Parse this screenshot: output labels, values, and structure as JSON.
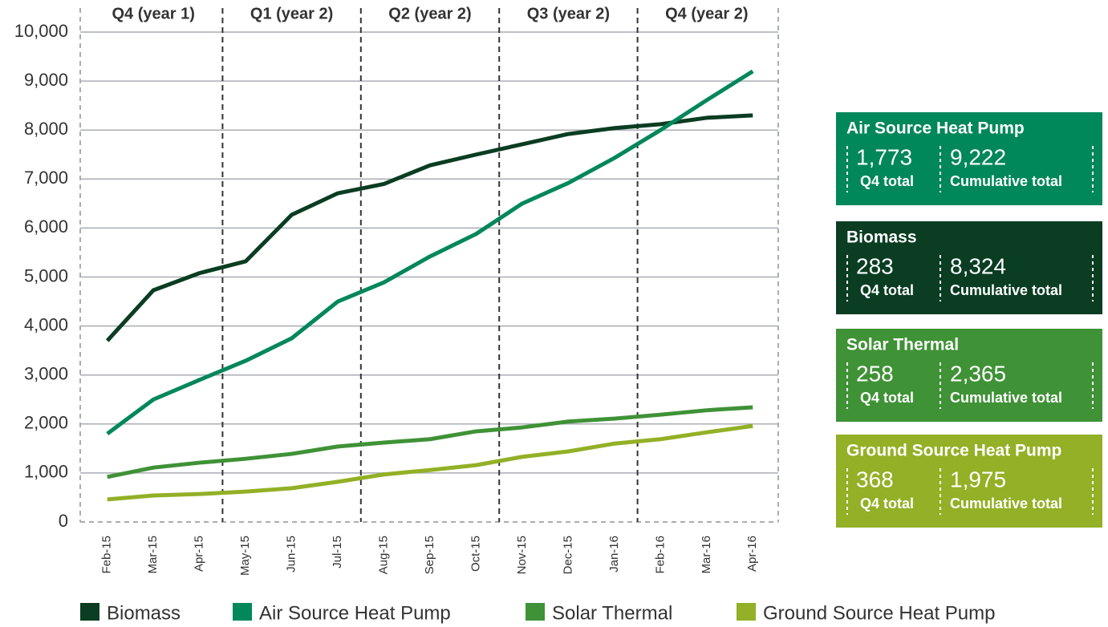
{
  "chart_data": {
    "type": "line",
    "categories": [
      "Feb-15",
      "Mar-15",
      "Apr-15",
      "May-15",
      "Jun-15",
      "Jul-15",
      "Aug-15",
      "Sep-15",
      "Oct-15",
      "Nov-15",
      "Dec-15",
      "Jan-16",
      "Feb-16",
      "Mar-16",
      "Apr-16"
    ],
    "quarters": [
      "Q4 (year 1)",
      "Q1 (year 2)",
      "Q2 (year 2)",
      "Q3 (year 2)",
      "Q4 (year 2)"
    ],
    "series": [
      {
        "name": "Biomass",
        "color": "#0a3d22",
        "values": [
          3700,
          4730,
          5080,
          5320,
          6270,
          6710,
          6900,
          7280,
          7500,
          7710,
          7920,
          8040,
          8120,
          8250,
          8300
        ]
      },
      {
        "name": "Air Source Heat Pump",
        "color": "#00875a",
        "values": [
          1800,
          2500,
          2900,
          3290,
          3750,
          4500,
          4890,
          5420,
          5880,
          6500,
          6920,
          7430,
          8000,
          8610,
          9200
        ]
      },
      {
        "name": "Solar Thermal",
        "color": "#3f9236",
        "values": [
          920,
          1110,
          1210,
          1290,
          1390,
          1540,
          1620,
          1690,
          1850,
          1930,
          2050,
          2110,
          2190,
          2280,
          2340
        ]
      },
      {
        "name": "Ground Source Heat Pump",
        "color": "#93b026",
        "values": [
          460,
          540,
          570,
          620,
          690,
          820,
          970,
          1060,
          1160,
          1330,
          1440,
          1600,
          1690,
          1830,
          1960
        ]
      }
    ],
    "ylim": [
      0,
      10000
    ],
    "yticks": [
      0,
      {
        "value": 1000,
        "label": "1,000"
      },
      {
        "value": 2000,
        "label": "2,000"
      },
      {
        "value": 3000,
        "label": "3,000"
      },
      {
        "value": 4000,
        "label": "4,000"
      },
      {
        "value": 5000,
        "label": "5,000"
      },
      {
        "value": 6000,
        "label": "6,000"
      },
      {
        "value": 7000,
        "label": "7,000"
      },
      {
        "value": 8000,
        "label": "8,000"
      },
      {
        "value": 9000,
        "label": "9,000"
      },
      {
        "value": 10000,
        "label": "10,000"
      }
    ],
    "grid": true
  },
  "panels": [
    {
      "title": "Air Source Heat Pump",
      "color": "#00875a",
      "quarter": "1,773",
      "quarter_label": "Q4 total",
      "cumulative": "9,222",
      "cumulative_label": "Cumulative total"
    },
    {
      "title": "Biomass",
      "color": "#0a3d22",
      "quarter": "283",
      "quarter_label": "Q4 total",
      "cumulative": "8,324",
      "cumulative_label": "Cumulative total"
    },
    {
      "title": "Solar Thermal",
      "color": "#3f9236",
      "quarter": "258",
      "quarter_label": "Q4 total",
      "cumulative": "2,365",
      "cumulative_label": "Cumulative total"
    },
    {
      "title": "Ground Source Heat Pump",
      "color": "#93b026",
      "quarter": "368",
      "quarter_label": "Q4 total",
      "cumulative": "1,975",
      "cumulative_label": "Cumulative total"
    }
  ]
}
